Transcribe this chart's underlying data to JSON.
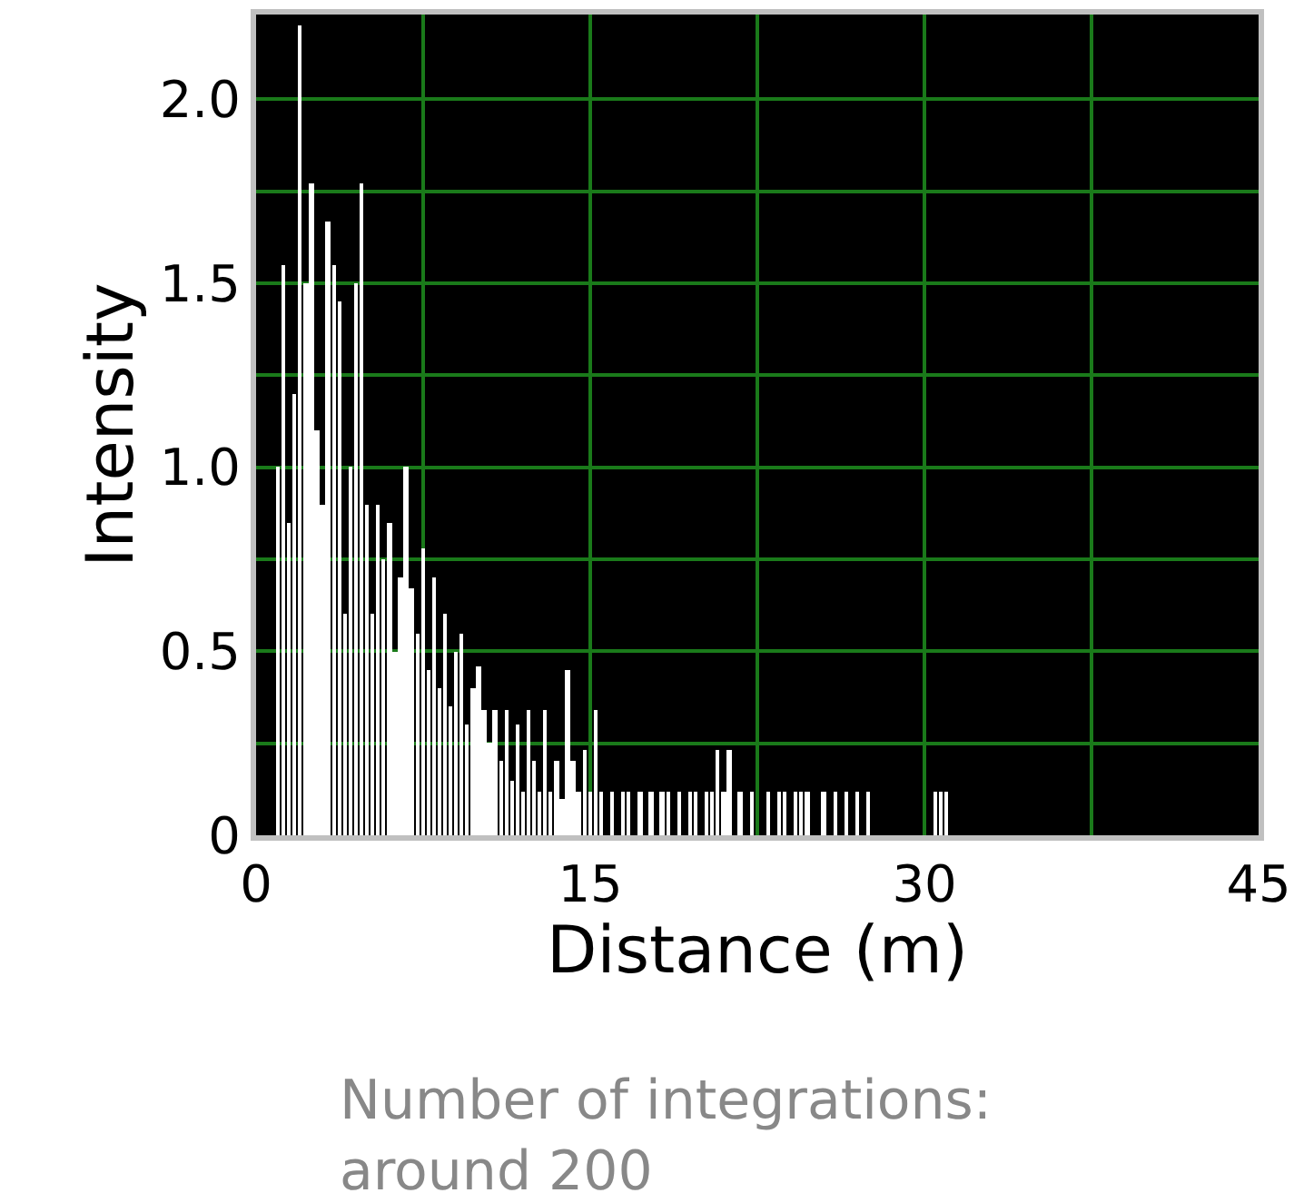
{
  "chart_data": {
    "type": "bar",
    "xlabel": "Distance (m)",
    "ylabel": "Intensity",
    "annotations": [
      "Number of integrations: around 200"
    ],
    "x": [
      1.0,
      1.25,
      1.5,
      1.75,
      2.0,
      2.25,
      2.5,
      2.75,
      3.0,
      3.25,
      3.5,
      3.75,
      4.0,
      4.25,
      4.5,
      4.75,
      5.0,
      5.25,
      5.5,
      5.75,
      6.0,
      6.25,
      6.5,
      6.75,
      7.0,
      7.25,
      7.5,
      7.75,
      8.0,
      8.25,
      8.5,
      8.75,
      9.0,
      9.25,
      9.5,
      9.75,
      10.0,
      10.25,
      10.5,
      10.75,
      11.0,
      11.25,
      11.5,
      11.75,
      12.0,
      12.25,
      12.5,
      12.75,
      13.0,
      13.25,
      13.5,
      13.75,
      14.0,
      14.25,
      14.5,
      14.75,
      15.0,
      15.25,
      15.5,
      15.75,
      16.0,
      16.25,
      16.5,
      16.75,
      17.0,
      17.25,
      17.5,
      17.75,
      18.0,
      18.25,
      18.5,
      18.75,
      19.0,
      19.25,
      19.5,
      19.75,
      20.0,
      20.25,
      20.5,
      20.75,
      21.0,
      21.25,
      21.5,
      21.75,
      22.0,
      22.25,
      22.5,
      22.75,
      23.0,
      23.25,
      23.5,
      23.75,
      24.0,
      24.25,
      24.5,
      24.75,
      25.0,
      25.25,
      25.5,
      25.75,
      26.0,
      26.25,
      26.5,
      26.75,
      27.0,
      27.25,
      27.5,
      30.5,
      30.75,
      31.0
    ],
    "series": [
      {
        "color": "#ffffff",
        "values": [
          1.0,
          1.55,
          0.85,
          1.2,
          2.2,
          1.5,
          1.77,
          1.1,
          0.9,
          1.67,
          1.55,
          1.45,
          0.6,
          1.0,
          1.5,
          1.77,
          0.9,
          0.6,
          0.9,
          0.75,
          0.85,
          0.5,
          0.7,
          1.0,
          0.67,
          0.55,
          0.78,
          0.45,
          0.7,
          0.4,
          0.6,
          0.35,
          0.5,
          0.55,
          0.3,
          0.4,
          0.46,
          0.34,
          0.25,
          0.34,
          0.2,
          0.34,
          0.15,
          0.3,
          0.12,
          0.34,
          0.2,
          0.12,
          0.34,
          0.12,
          0.2,
          0.1,
          0.45,
          0.2,
          0.12,
          0.23,
          0.12,
          0.34,
          0.12,
          0,
          0.12,
          0,
          0.12,
          0.12,
          0,
          0.12,
          0,
          0.12,
          0,
          0.12,
          0.12,
          0,
          0.12,
          0,
          0.12,
          0.12,
          0,
          0.12,
          0.12,
          0.23,
          0.12,
          0.23,
          0,
          0.12,
          0,
          0.12,
          0,
          0,
          0.12,
          0,
          0.12,
          0.12,
          0,
          0.12,
          0.12,
          0.12,
          0,
          0,
          0.12,
          0,
          0.12,
          0,
          0.12,
          0,
          0.12,
          0,
          0.12,
          0.12,
          0.12,
          0.12
        ]
      }
    ],
    "xlim": [
      0,
      45
    ],
    "xticks": [
      0,
      {
        "value": 7.5,
        "label": null
      },
      15,
      {
        "value": 22.5,
        "label": null
      },
      30,
      {
        "value": 37.5,
        "label": null
      },
      45
    ],
    "ylim": [
      0,
      2.23
    ],
    "yticks": [
      0,
      {
        "value": 0.25,
        "label": null
      },
      0.5,
      {
        "value": 0.75,
        "label": null
      },
      {
        "value": 1.0,
        "label": "1.0"
      },
      {
        "value": 1.25,
        "label": null
      },
      1.5,
      {
        "value": 1.75,
        "label": null
      },
      {
        "value": 2.0,
        "label": "2.0"
      }
    ],
    "grid": true
  }
}
